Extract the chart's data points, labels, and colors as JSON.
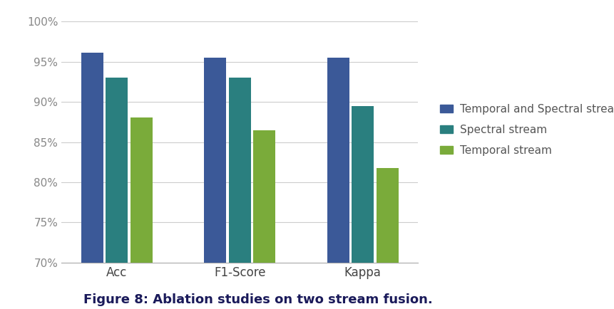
{
  "categories": [
    "Acc",
    "F1-Score",
    "Kappa"
  ],
  "series": {
    "Temporal and Spectral stream": [
      96.1,
      95.5,
      95.5
    ],
    "Spectral stream": [
      93.0,
      93.0,
      89.5
    ],
    "Temporal stream": [
      88.1,
      86.5,
      81.8
    ]
  },
  "colors": {
    "Temporal and Spectral stream": "#3B5998",
    "Spectral stream": "#2A7F7F",
    "Temporal stream": "#7AAB3A"
  },
  "ylim": [
    70,
    100
  ],
  "yticks": [
    70,
    75,
    80,
    85,
    90,
    95,
    100
  ],
  "background_color": "#FFFFFF",
  "figure_caption": "Figure 8: Ablation studies on two stream fusion.",
  "caption_fontsize": 13,
  "legend_fontsize": 11,
  "tick_fontsize": 11,
  "xlabel_fontsize": 12,
  "bar_width": 0.18,
  "bar_gap": 0.02
}
